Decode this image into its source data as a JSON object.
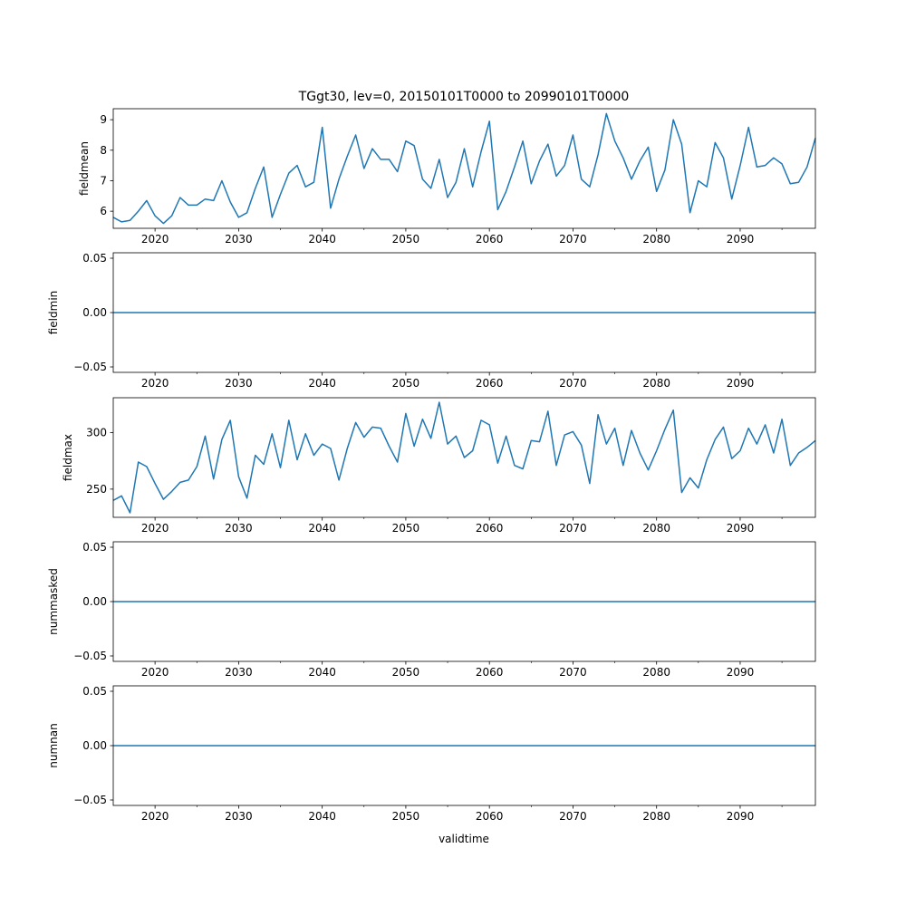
{
  "chart_data": {
    "type": "line",
    "title": "TGgt30, lev=0, 20150101T0000 to 20990101T0000",
    "xlabel": "validtime",
    "xlim": [
      2015,
      2099
    ],
    "xticks": [
      2020,
      2030,
      2040,
      2050,
      2060,
      2070,
      2080,
      2090
    ],
    "xtick_labels": [
      "2020",
      "2030",
      "2040",
      "2050",
      "2060",
      "2070",
      "2080",
      "2090"
    ],
    "x_start": 2015,
    "color": "#1f77b4",
    "panels": [
      {
        "ylabel": "fieldmean",
        "ylim": [
          5.44,
          9.36
        ],
        "yticks": [
          6,
          7,
          8,
          9
        ],
        "ytick_labels": [
          "6",
          "7",
          "8",
          "9"
        ],
        "values": [
          5.8,
          5.65,
          5.7,
          6.0,
          6.35,
          5.85,
          5.6,
          5.85,
          6.45,
          6.2,
          6.2,
          6.4,
          6.35,
          7.0,
          6.3,
          5.8,
          5.95,
          6.75,
          7.45,
          5.8,
          6.55,
          7.25,
          7.5,
          6.8,
          6.95,
          8.75,
          6.1,
          7.05,
          7.8,
          8.5,
          7.4,
          8.05,
          7.7,
          7.7,
          7.3,
          8.3,
          8.15,
          7.05,
          6.75,
          7.7,
          6.45,
          6.95,
          8.05,
          6.8,
          7.95,
          8.95,
          6.05,
          6.65,
          7.45,
          8.3,
          6.9,
          7.65,
          8.2,
          7.15,
          7.5,
          8.5,
          7.05,
          6.8,
          7.85,
          9.2,
          8.3,
          7.75,
          7.05,
          7.65,
          8.1,
          6.65,
          7.35,
          9.0,
          8.2,
          5.95,
          7.0,
          6.8,
          8.25,
          7.75,
          6.4,
          7.5,
          8.75,
          7.45,
          7.5,
          7.75,
          7.55,
          6.9,
          6.95,
          7.45,
          8.4
        ]
      },
      {
        "ylabel": "fieldmin",
        "ylim": [
          -0.055,
          0.055
        ],
        "yticks": [
          -0.05,
          0.0,
          0.05
        ],
        "ytick_labels": [
          "−0.05",
          "0.00",
          "0.05"
        ],
        "constant_value": 0
      },
      {
        "ylabel": "fieldmax",
        "ylim": [
          225,
          331
        ],
        "yticks": [
          250,
          300
        ],
        "ytick_labels": [
          "250",
          "300"
        ],
        "values": [
          240,
          244,
          229,
          274,
          270,
          255,
          241,
          248,
          256,
          258,
          270,
          297,
          259,
          294,
          311,
          261,
          242,
          280,
          272,
          299,
          269,
          311,
          276,
          299,
          280,
          290,
          286,
          258,
          286,
          309,
          296,
          305,
          304,
          288,
          274,
          317,
          288,
          312,
          295,
          327,
          290,
          297,
          278,
          284,
          311,
          307,
          273,
          297,
          271,
          268,
          293,
          292,
          319,
          271,
          298,
          301,
          289,
          255,
          316,
          290,
          304,
          271,
          302,
          282,
          267,
          284,
          303,
          320,
          247,
          260,
          251,
          276,
          294,
          305,
          277,
          284,
          304,
          290,
          307,
          282,
          312,
          271,
          282,
          287,
          293
        ]
      },
      {
        "ylabel": "nummasked",
        "ylim": [
          -0.055,
          0.055
        ],
        "yticks": [
          -0.05,
          0.0,
          0.05
        ],
        "ytick_labels": [
          "−0.05",
          "0.00",
          "0.05"
        ],
        "constant_value": 0
      },
      {
        "ylabel": "numnan",
        "ylim": [
          -0.055,
          0.055
        ],
        "yticks": [
          -0.05,
          0.0,
          0.05
        ],
        "ytick_labels": [
          "−0.05",
          "0.00",
          "0.05"
        ],
        "constant_value": 0
      }
    ]
  }
}
